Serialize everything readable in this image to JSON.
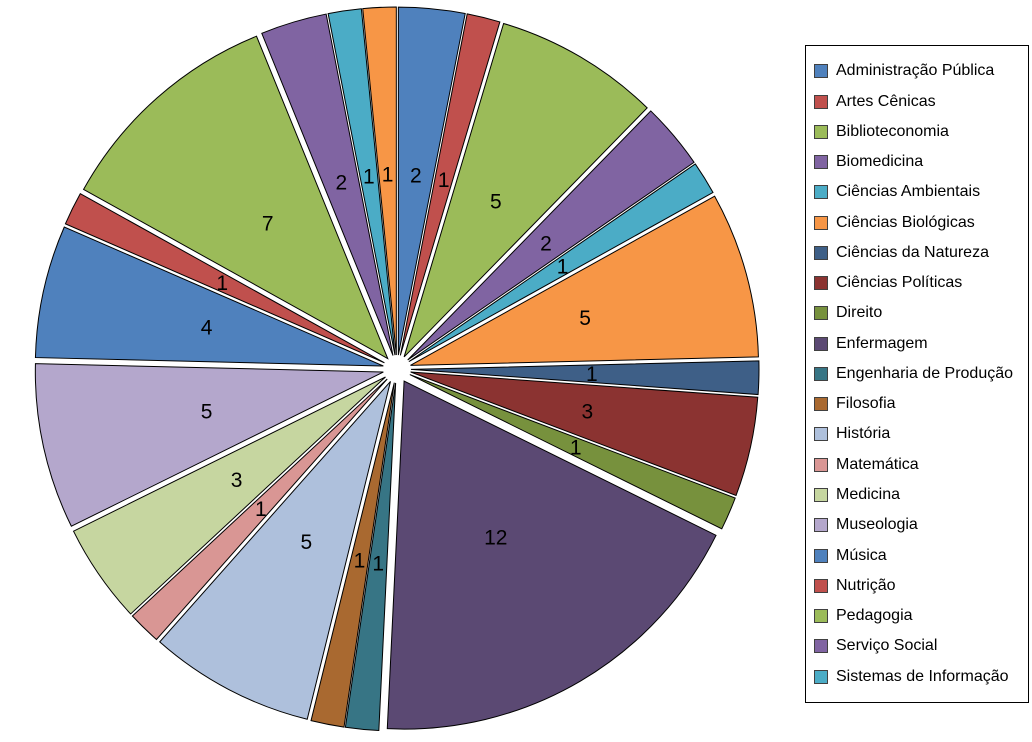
{
  "chart_data": {
    "type": "pie",
    "exploded": true,
    "start_angle_deg": 0,
    "direction": "clockwise",
    "total_units": 65,
    "background": "#FFFFFF",
    "slice_border_color": "#000000",
    "data_label_color": "#000000",
    "slices": [
      {
        "name": "Administração Pública",
        "value": 2,
        "data_label": "2",
        "color": "#4F81BD",
        "in_legend": true
      },
      {
        "name": "Artes Cênicas",
        "value": 1,
        "data_label": "1",
        "color": "#C0504D",
        "in_legend": true
      },
      {
        "name": "Biblioteconomia",
        "value": 5,
        "data_label": "5",
        "color": "#9BBB59",
        "in_legend": true
      },
      {
        "name": "Biomedicina",
        "value": 2,
        "data_label": "2",
        "color": "#8064A2",
        "in_legend": true
      },
      {
        "name": "Ciências Ambientais",
        "value": 1,
        "data_label": "1",
        "color": "#4BACC6",
        "in_legend": true
      },
      {
        "name": "Ciências Biológicas",
        "value": 5,
        "data_label": "5",
        "color": "#F79646",
        "in_legend": true
      },
      {
        "name": "Ciências da Natureza",
        "value": 1,
        "data_label": "1",
        "color": "#3E5F87",
        "in_legend": true
      },
      {
        "name": "Ciências Políticas",
        "value": 3,
        "data_label": "3",
        "color": "#8B3331",
        "in_legend": true
      },
      {
        "name": "Direito",
        "value": 1,
        "data_label": "1",
        "color": "#77913D",
        "in_legend": true
      },
      {
        "name": "Enfermagem",
        "value": 12,
        "data_label": "12",
        "color": "#5B4973",
        "in_legend": true
      },
      {
        "name": "Engenharia de Produção",
        "value": 1,
        "data_label": "1",
        "color": "#377585",
        "in_legend": true
      },
      {
        "name": "Filosofia",
        "value": 1,
        "data_label": "1",
        "color": "#A96930",
        "in_legend": true
      },
      {
        "name": "História",
        "value": 5,
        "data_label": "5",
        "color": "#AEC0DC",
        "in_legend": true
      },
      {
        "name": "Matemática",
        "value": 1,
        "data_label": "1",
        "color": "#D99694",
        "in_legend": true
      },
      {
        "name": "Medicina",
        "value": 3,
        "data_label": "3",
        "color": "#C6D6A0",
        "in_legend": true
      },
      {
        "name": "Museologia",
        "value": 5,
        "data_label": "5",
        "color": "#B4A7CC",
        "in_legend": true
      },
      {
        "name": "Música",
        "value": 4,
        "data_label": "4",
        "color": "#4F81BD",
        "in_legend": true
      },
      {
        "name": "Nutrição",
        "value": 1,
        "data_label": "1",
        "color": "#C0504D",
        "in_legend": true
      },
      {
        "name": "Pedagogia",
        "value": 7,
        "data_label": "7",
        "color": "#9BBB59",
        "in_legend": true
      },
      {
        "name": "Serviço Social",
        "value": 2,
        "data_label": "2",
        "color": "#8064A2",
        "in_legend": true
      },
      {
        "name": "Sistemas de Informação",
        "value": 1,
        "data_label": "1",
        "color": "#4BACC6",
        "in_legend": true
      },
      {
        "name": "",
        "value": 1,
        "data_label": "1",
        "color": "#F79646",
        "in_legend": false
      }
    ],
    "legend": {
      "position": "right",
      "border_color": "#000000",
      "background": "#FFFFFF",
      "visible_entry_count": 21
    }
  }
}
